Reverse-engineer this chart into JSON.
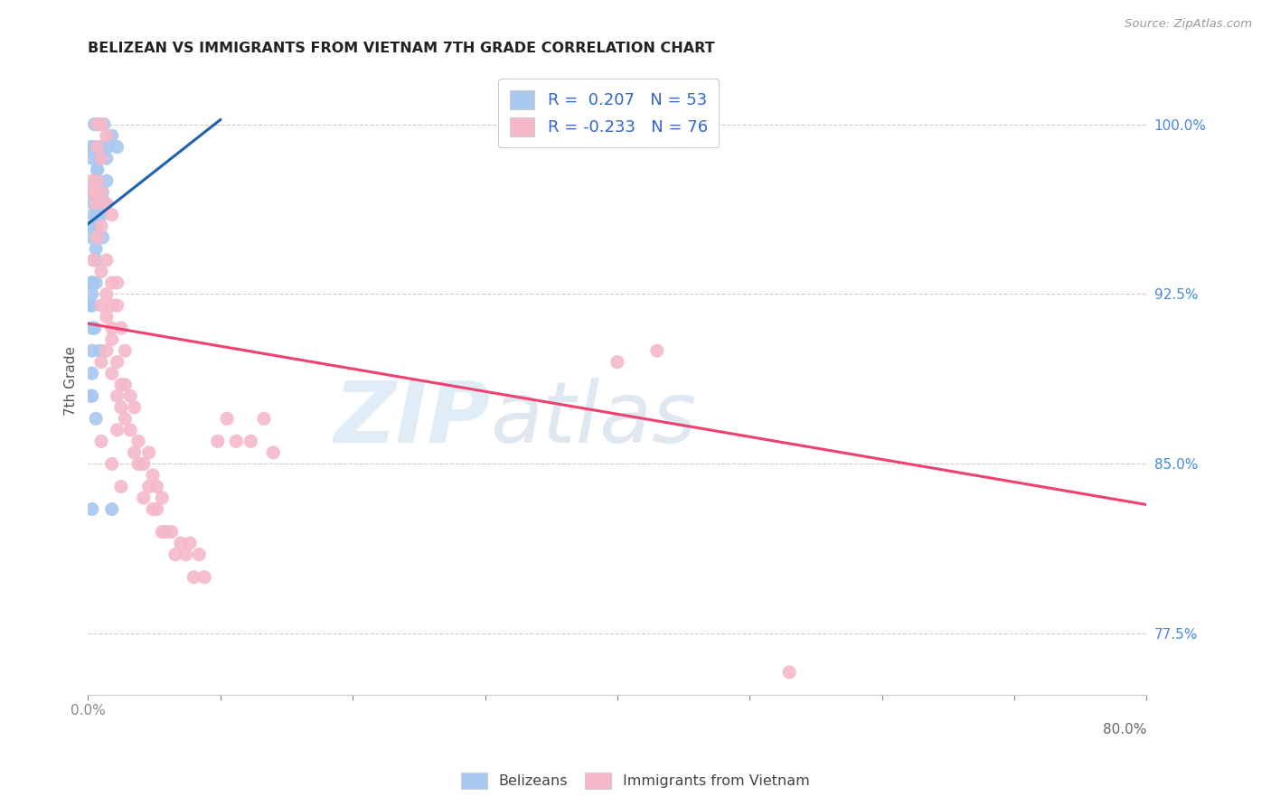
{
  "title": "BELIZEAN VS IMMIGRANTS FROM VIETNAM 7TH GRADE CORRELATION CHART",
  "source": "Source: ZipAtlas.com",
  "legend_label_blue": "Belizeans",
  "legend_label_pink": "Immigrants from Vietnam",
  "R_blue": "0.207",
  "N_blue": "53",
  "R_pink": "-0.233",
  "N_pink": "76",
  "blue_color": "#A8C8F0",
  "pink_color": "#F5B8C8",
  "blue_line_color": "#2060B0",
  "pink_line_color": "#F04070",
  "watermark_zip": "ZIP",
  "watermark_atlas": "atlas",
  "xlim": [
    0.0,
    0.8
  ],
  "ylim": [
    0.748,
    1.025
  ],
  "right_yticks": [
    "100.0%",
    "92.5%",
    "85.0%",
    "77.5%"
  ],
  "right_ytick_vals": [
    1.0,
    0.925,
    0.85,
    0.775
  ],
  "blue_scatter_x": [
    0.005,
    0.008,
    0.004,
    0.012,
    0.007,
    0.003,
    0.015,
    0.006,
    0.002,
    0.01,
    0.018,
    0.014,
    0.022,
    0.009,
    0.007,
    0.003,
    0.006,
    0.011,
    0.004,
    0.013,
    0.007,
    0.009,
    0.004,
    0.006,
    0.003,
    0.003,
    0.01,
    0.007,
    0.014,
    0.003,
    0.007,
    0.003,
    0.011,
    0.006,
    0.003,
    0.003,
    0.006,
    0.003,
    0.002,
    0.005,
    0.009,
    0.002,
    0.006,
    0.003,
    0.018,
    0.003,
    0.006,
    0.003,
    0.003,
    0.003,
    0.003,
    0.003,
    0.003
  ],
  "blue_scatter_y": [
    1.0,
    1.0,
    0.99,
    1.0,
    1.0,
    0.985,
    0.99,
    1.0,
    0.99,
    0.99,
    0.995,
    0.985,
    0.99,
    0.985,
    0.98,
    0.97,
    0.975,
    0.97,
    0.965,
    0.965,
    0.98,
    0.97,
    0.96,
    0.955,
    0.97,
    0.955,
    0.96,
    0.975,
    0.975,
    0.97,
    0.96,
    0.955,
    0.95,
    0.945,
    0.93,
    0.93,
    0.93,
    0.925,
    0.92,
    0.91,
    0.9,
    0.88,
    0.87,
    0.83,
    0.83,
    0.95,
    0.94,
    0.93,
    0.92,
    0.91,
    0.9,
    0.89,
    0.88
  ],
  "pink_scatter_x": [
    0.007,
    0.01,
    0.007,
    0.014,
    0.01,
    0.007,
    0.003,
    0.004,
    0.007,
    0.006,
    0.01,
    0.014,
    0.018,
    0.01,
    0.007,
    0.004,
    0.014,
    0.01,
    0.018,
    0.014,
    0.022,
    0.018,
    0.01,
    0.014,
    0.018,
    0.022,
    0.025,
    0.018,
    0.014,
    0.01,
    0.028,
    0.022,
    0.018,
    0.025,
    0.022,
    0.028,
    0.032,
    0.025,
    0.028,
    0.022,
    0.035,
    0.032,
    0.038,
    0.035,
    0.042,
    0.046,
    0.038,
    0.049,
    0.046,
    0.042,
    0.052,
    0.056,
    0.049,
    0.052,
    0.059,
    0.056,
    0.063,
    0.07,
    0.066,
    0.074,
    0.077,
    0.084,
    0.08,
    0.088,
    0.105,
    0.098,
    0.112,
    0.123,
    0.133,
    0.14,
    0.01,
    0.018,
    0.025,
    0.4,
    0.43,
    0.53
  ],
  "pink_scatter_y": [
    1.0,
    1.0,
    0.99,
    0.995,
    0.985,
    0.97,
    0.975,
    0.97,
    0.975,
    0.965,
    0.97,
    0.965,
    0.96,
    0.955,
    0.95,
    0.94,
    0.94,
    0.935,
    0.93,
    0.925,
    0.93,
    0.92,
    0.92,
    0.915,
    0.91,
    0.92,
    0.91,
    0.905,
    0.9,
    0.895,
    0.9,
    0.895,
    0.89,
    0.885,
    0.88,
    0.885,
    0.88,
    0.875,
    0.87,
    0.865,
    0.875,
    0.865,
    0.86,
    0.855,
    0.85,
    0.855,
    0.85,
    0.845,
    0.84,
    0.835,
    0.84,
    0.835,
    0.83,
    0.83,
    0.82,
    0.82,
    0.82,
    0.815,
    0.81,
    0.81,
    0.815,
    0.81,
    0.8,
    0.8,
    0.87,
    0.86,
    0.86,
    0.86,
    0.87,
    0.855,
    0.86,
    0.85,
    0.84,
    0.895,
    0.9,
    0.758
  ],
  "blue_trend_x": [
    0.0,
    0.1
  ],
  "blue_trend_y": [
    0.956,
    1.002
  ],
  "pink_trend_x": [
    0.0,
    0.8
  ],
  "pink_trend_y": [
    0.912,
    0.832
  ]
}
